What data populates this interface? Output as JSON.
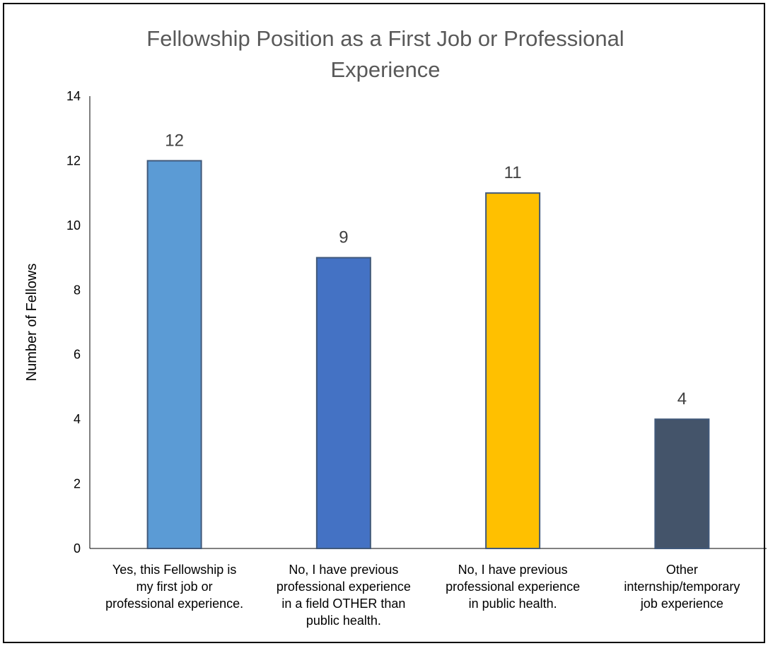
{
  "chart_data": {
    "type": "bar",
    "title": "Fellowship Position as a First Job or Professional Experience",
    "title_lines": [
      "Fellowship Position as a First Job or Professional",
      "Experience"
    ],
    "xlabel": "",
    "ylabel": "Number of Fellows",
    "ylim": [
      0,
      14
    ],
    "yticks": [
      "0",
      "2",
      "4",
      "6",
      "8",
      "10",
      "12",
      "14"
    ],
    "grid": false,
    "legend": "none",
    "categories": [
      "Yes, this Fellowship is my first job or professional experience.",
      "No, I have previous professional experience in a field OTHER than public health.",
      "No, I have previous professional experience in public health.",
      "Other internship/temporary job experience"
    ],
    "category_lines": [
      [
        "Yes, this Fellowship is",
        "my first job or",
        "professional experience."
      ],
      [
        "No, I have previous",
        "professional experience",
        "in a field OTHER than",
        "public health."
      ],
      [
        "No, I have previous",
        "professional experience",
        "in public health."
      ],
      [
        "Other",
        "internship/temporary",
        "job experience"
      ]
    ],
    "values": [
      12,
      9,
      11,
      4
    ],
    "data_labels": [
      "12",
      "9",
      "11",
      "4"
    ],
    "colors": [
      "#5B9BD5",
      "#4472C4",
      "#FFC000",
      "#44546A"
    ],
    "bar_border_color": "#41597A"
  }
}
